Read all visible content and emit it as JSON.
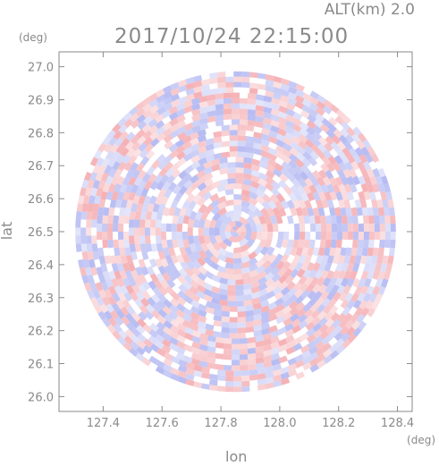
{
  "header": {
    "altitude_label": "ALT(km) 2.0",
    "datetime": "2017/10/24 22:15:00"
  },
  "chart_data": {
    "type": "heatmap",
    "title": "2017/10/24 22:15:00",
    "subtitle": "ALT(km) 2.0",
    "xlabel": "lon",
    "ylabel": "lat",
    "x_unit": "(deg)",
    "y_unit": "(deg)",
    "xlim": [
      127.25,
      128.45
    ],
    "ylim": [
      25.955,
      27.045
    ],
    "x_ticks": [
      "127.4",
      "127.6",
      "127.8",
      "128.0",
      "128.2",
      "128.4"
    ],
    "y_ticks": [
      "26.0",
      "26.1",
      "26.2",
      "26.3",
      "26.4",
      "26.5",
      "26.6",
      "26.7",
      "26.8",
      "26.9",
      "27.0"
    ],
    "center": {
      "lon": 127.85,
      "lat": 26.5
    },
    "radius_deg": 0.545,
    "colors": {
      "positive": "#f3a3a8",
      "negative": "#a9aff0",
      "axis": "#8a8a8a",
      "background": "#ffffff"
    },
    "grid": false
  }
}
